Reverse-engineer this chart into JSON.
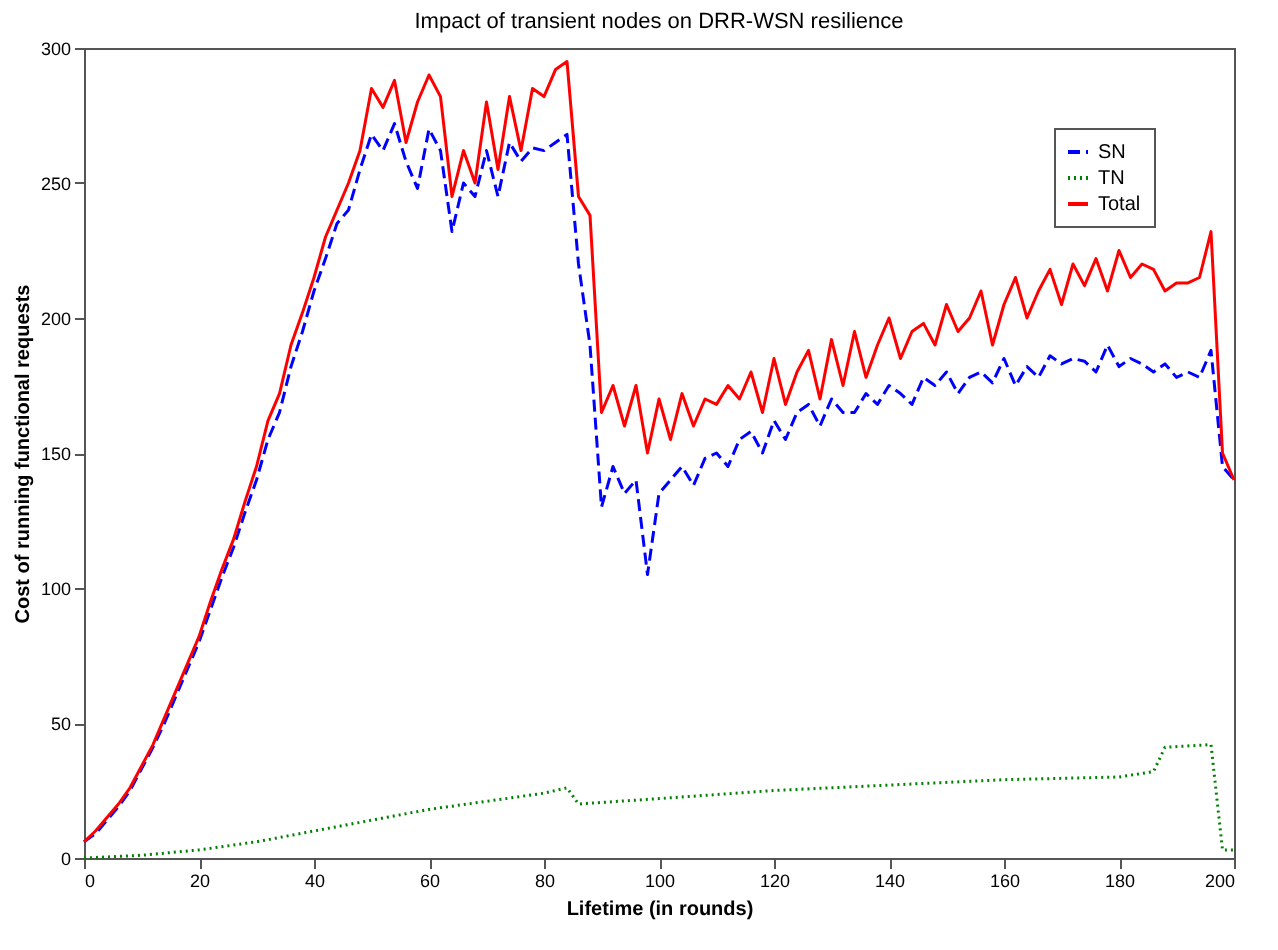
{
  "chart_data": {
    "type": "line",
    "title": "Impact of transient nodes on DRR-WSN resilience",
    "xlabel": "Lifetime (in rounds)",
    "ylabel": "Cost of running functional requests",
    "x": [
      0,
      2,
      4,
      6,
      8,
      10,
      12,
      14,
      16,
      18,
      20,
      22,
      24,
      26,
      28,
      30,
      32,
      34,
      36,
      38,
      40,
      42,
      44,
      46,
      48,
      50,
      52,
      54,
      56,
      58,
      60,
      62,
      64,
      66,
      68,
      70,
      72,
      74,
      76,
      78,
      80,
      82,
      84,
      86,
      88,
      90,
      92,
      94,
      96,
      98,
      100,
      102,
      104,
      106,
      108,
      110,
      112,
      114,
      116,
      118,
      120,
      122,
      124,
      126,
      128,
      130,
      132,
      134,
      136,
      138,
      140,
      142,
      144,
      146,
      148,
      150,
      152,
      154,
      156,
      158,
      160,
      162,
      164,
      166,
      168,
      170,
      172,
      174,
      176,
      178,
      180,
      182,
      184,
      186,
      188,
      190,
      192,
      194,
      196,
      198,
      200
    ],
    "series": [
      {
        "name": "SN",
        "color": "#0000ff",
        "line_style": "dashed",
        "values": [
          6,
          9,
          14,
          19,
          25,
          33,
          41,
          50,
          60,
          70,
          80,
          92,
          104,
          115,
          128,
          140,
          155,
          165,
          182,
          195,
          210,
          222,
          235,
          240,
          255,
          268,
          262,
          272,
          258,
          248,
          270,
          262,
          232,
          250,
          245,
          262,
          245,
          265,
          258,
          263,
          262,
          265,
          268,
          220,
          190,
          130,
          145,
          135,
          140,
          105,
          135,
          140,
          145,
          138,
          148,
          150,
          145,
          155,
          158,
          150,
          162,
          155,
          165,
          168,
          160,
          170,
          165,
          165,
          172,
          168,
          175,
          172,
          168,
          178,
          175,
          180,
          172,
          178,
          180,
          176,
          185,
          175,
          182,
          178,
          186,
          183,
          185,
          184,
          180,
          190,
          182,
          185,
          183,
          180,
          183,
          178,
          180,
          178,
          188,
          145,
          140
        ]
      },
      {
        "name": "TN",
        "color": "#008000",
        "line_style": "dotted",
        "x": [
          0,
          10,
          20,
          30,
          40,
          50,
          60,
          70,
          80,
          84,
          86,
          100,
          120,
          140,
          160,
          180,
          186,
          188,
          196,
          198,
          200
        ],
        "values": [
          0,
          1,
          3,
          6,
          10,
          14,
          18,
          21,
          24,
          26,
          20,
          22,
          25,
          27,
          29,
          30,
          32,
          41,
          42,
          3,
          3
        ]
      },
      {
        "name": "Total",
        "color": "#ff0000",
        "line_style": "solid",
        "values": [
          6,
          10,
          15,
          20,
          26,
          34,
          42,
          52,
          62,
          72,
          82,
          95,
          107,
          118,
          132,
          145,
          162,
          172,
          190,
          202,
          215,
          230,
          240,
          250,
          262,
          285,
          278,
          288,
          265,
          280,
          290,
          282,
          245,
          262,
          250,
          280,
          255,
          282,
          262,
          285,
          282,
          292,
          295,
          245,
          238,
          165,
          175,
          160,
          175,
          150,
          170,
          155,
          172,
          160,
          170,
          168,
          175,
          170,
          180,
          165,
          185,
          168,
          180,
          188,
          170,
          192,
          175,
          195,
          178,
          190,
          200,
          185,
          195,
          198,
          190,
          205,
          195,
          200,
          210,
          190,
          205,
          215,
          200,
          210,
          218,
          205,
          220,
          212,
          222,
          210,
          225,
          215,
          220,
          218,
          210,
          213,
          213,
          215,
          232,
          150,
          140
        ]
      }
    ],
    "xlim": [
      0,
      200
    ],
    "xticks": [
      0,
      20,
      40,
      60,
      80,
      100,
      120,
      140,
      160,
      180,
      200
    ],
    "ylim": [
      0,
      300
    ],
    "yticks": [
      0,
      50,
      100,
      150,
      200,
      250,
      300
    ],
    "grid": false,
    "legend": "top right"
  }
}
